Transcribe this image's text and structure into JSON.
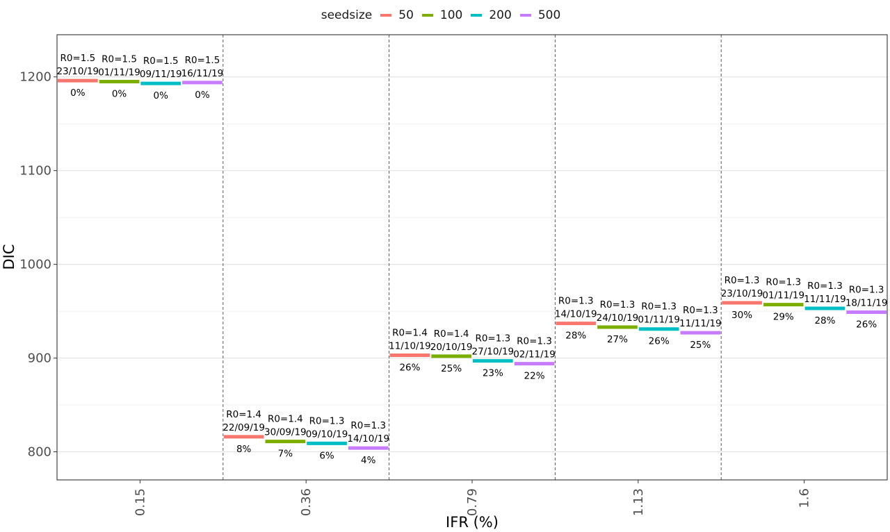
{
  "chart_data": {
    "type": "scatter",
    "xlabel": "IFR (%)",
    "ylabel": "DIC",
    "categories": [
      "0.15",
      "0.36",
      "0.79",
      "1.13",
      "1.6"
    ],
    "ylim": [
      770,
      1245
    ],
    "yticks": [
      800,
      900,
      1000,
      1100,
      1200
    ],
    "legend": {
      "title": "seedsize",
      "position": "top"
    },
    "grid": true,
    "series": [
      {
        "name": "50",
        "color": "#F8766D",
        "points": [
          {
            "x": "0.15",
            "y": 1196,
            "r0": "R0=1.5",
            "date": "23/10/19",
            "pct": "0%"
          },
          {
            "x": "0.36",
            "y": 816,
            "r0": "R0=1.4",
            "date": "22/09/19",
            "pct": "8%"
          },
          {
            "x": "0.79",
            "y": 903,
            "r0": "R0=1.4",
            "date": "11/10/19",
            "pct": "26%"
          },
          {
            "x": "1.13",
            "y": 937,
            "r0": "R0=1.3",
            "date": "14/10/19",
            "pct": "28%"
          },
          {
            "x": "1.6",
            "y": 959,
            "r0": "R0=1.3",
            "date": "23/10/19",
            "pct": "30%"
          }
        ]
      },
      {
        "name": "100",
        "color": "#7CAE00",
        "points": [
          {
            "x": "0.15",
            "y": 1195,
            "r0": "R0=1.5",
            "date": "01/11/19",
            "pct": "0%"
          },
          {
            "x": "0.36",
            "y": 811,
            "r0": "R0=1.4",
            "date": "30/09/19",
            "pct": "7%"
          },
          {
            "x": "0.79",
            "y": 902,
            "r0": "R0=1.4",
            "date": "20/10/19",
            "pct": "25%"
          },
          {
            "x": "1.13",
            "y": 933,
            "r0": "R0=1.3",
            "date": "24/10/19",
            "pct": "27%"
          },
          {
            "x": "1.6",
            "y": 957,
            "r0": "R0=1.3",
            "date": "01/11/19",
            "pct": "29%"
          }
        ]
      },
      {
        "name": "200",
        "color": "#00BFC4",
        "points": [
          {
            "x": "0.15",
            "y": 1193,
            "r0": "R0=1.5",
            "date": "09/11/19",
            "pct": "0%"
          },
          {
            "x": "0.36",
            "y": 809,
            "r0": "R0=1.3",
            "date": "09/10/19",
            "pct": "6%"
          },
          {
            "x": "0.79",
            "y": 897,
            "r0": "R0=1.3",
            "date": "27/10/19",
            "pct": "23%"
          },
          {
            "x": "1.13",
            "y": 931,
            "r0": "R0=1.3",
            "date": "01/11/19",
            "pct": "26%"
          },
          {
            "x": "1.6",
            "y": 953,
            "r0": "R0=1.3",
            "date": "11/11/19",
            "pct": "28%"
          }
        ]
      },
      {
        "name": "500",
        "color": "#C77CFF",
        "points": [
          {
            "x": "0.15",
            "y": 1194,
            "r0": "R0=1.5",
            "date": "16/11/19",
            "pct": "0%"
          },
          {
            "x": "0.36",
            "y": 804,
            "r0": "R0=1.3",
            "date": "14/10/19",
            "pct": "4%"
          },
          {
            "x": "0.79",
            "y": 894,
            "r0": "R0=1.3",
            "date": "02/11/19",
            "pct": "22%"
          },
          {
            "x": "1.13",
            "y": 927,
            "r0": "R0=1.3",
            "date": "11/11/19",
            "pct": "25%"
          },
          {
            "x": "1.6",
            "y": 949,
            "r0": "R0=1.3",
            "date": "18/11/19",
            "pct": "26%"
          }
        ]
      }
    ]
  }
}
